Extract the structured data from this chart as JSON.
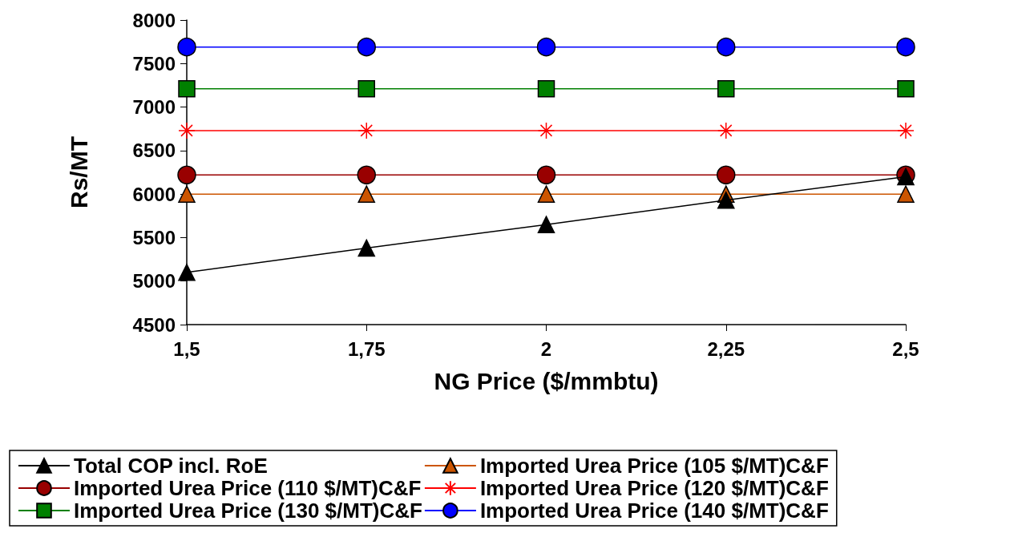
{
  "chart_data": {
    "type": "line",
    "xlabel": "NG Price ($/mmbtu)",
    "ylabel": "Rs/MT",
    "x": [
      1.5,
      1.75,
      2,
      2.25,
      2.5
    ],
    "xlim": [
      1.5,
      2.5
    ],
    "xticks": [
      {
        "value": 1.5,
        "label": "1,5"
      },
      {
        "value": 1.75,
        "label": "1,75"
      },
      2,
      {
        "value": 2.25,
        "label": "2,25"
      },
      {
        "value": 2.5,
        "label": "2,5"
      }
    ],
    "ylim": [
      4500,
      8000
    ],
    "yticks": [
      4500,
      5000,
      5500,
      6000,
      6500,
      7000,
      7500,
      8000
    ],
    "grid": false,
    "legend": "bottom",
    "line_style": "solid",
    "series": [
      {
        "name": "Total COP incl. RoE",
        "color": "#000000",
        "marker": "triangle",
        "values": [
          5100,
          5380,
          5650,
          5930,
          6200
        ]
      },
      {
        "name": "Imported Urea Price (110 $/MT)C&F",
        "color": "#990000",
        "marker": "circle",
        "values": [
          6220,
          6220,
          6220,
          6220,
          6220
        ]
      },
      {
        "name": "Imported Urea Price (130 $/MT)C&F",
        "color": "#008000",
        "marker": "square",
        "values": [
          7210,
          7210,
          7210,
          7210,
          7210
        ]
      },
      {
        "name": "Imported Urea Price (105 $/MT)C&F",
        "color": "#cc5500",
        "marker": "triangle",
        "values": [
          6000,
          6000,
          6000,
          6000,
          6000
        ]
      },
      {
        "name": "Imported Urea Price (120 $/MT)C&F",
        "color": "#ff0000",
        "marker": "cross",
        "values": [
          6730,
          6730,
          6730,
          6730,
          6730
        ]
      },
      {
        "name": "Imported Urea Price (140 $/MT)C&F",
        "color": "#0000ff",
        "marker": "circle",
        "values": [
          7690,
          7690,
          7690,
          7690,
          7690
        ]
      }
    ]
  }
}
